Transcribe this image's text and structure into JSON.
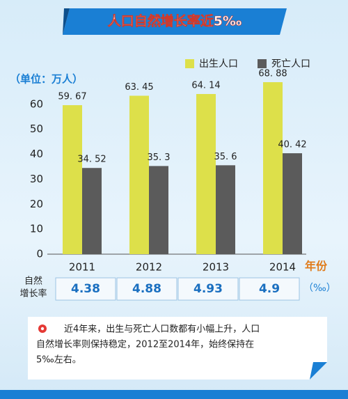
{
  "chart_data": {
    "type": "bar",
    "title": "人口自然增长率近5‰",
    "unit_label": "（单位：万人）",
    "x_label": "年份",
    "categories": [
      "2011",
      "2012",
      "2013",
      "2014"
    ],
    "series": [
      {
        "name": "出生人口",
        "color": "#dde04a",
        "values": [
          59.67,
          63.45,
          64.14,
          68.88
        ],
        "value_labels": [
          "59. 67",
          "63. 45",
          "64. 14",
          "68. 88"
        ]
      },
      {
        "name": "死亡人口",
        "color": "#5b5b5b",
        "values": [
          34.52,
          35.3,
          35.6,
          40.42
        ],
        "value_labels": [
          "34. 52",
          "35. 3",
          "35. 6",
          "40. 42"
        ]
      }
    ],
    "ylim": [
      0,
      70
    ],
    "yticks": [
      0,
      10,
      20,
      30,
      40,
      50,
      60
    ],
    "growth_rate": {
      "label": [
        "自然",
        "增长率"
      ],
      "values": [
        4.38,
        4.88,
        4.93,
        4.9
      ],
      "unit": "（‰）"
    },
    "note": [
      "近4年来，出生与死亡人口数都有小幅上升，人口",
      "自然增长率则保持稳定，2012至2014年，始终保持在",
      "5‰左右。"
    ]
  }
}
